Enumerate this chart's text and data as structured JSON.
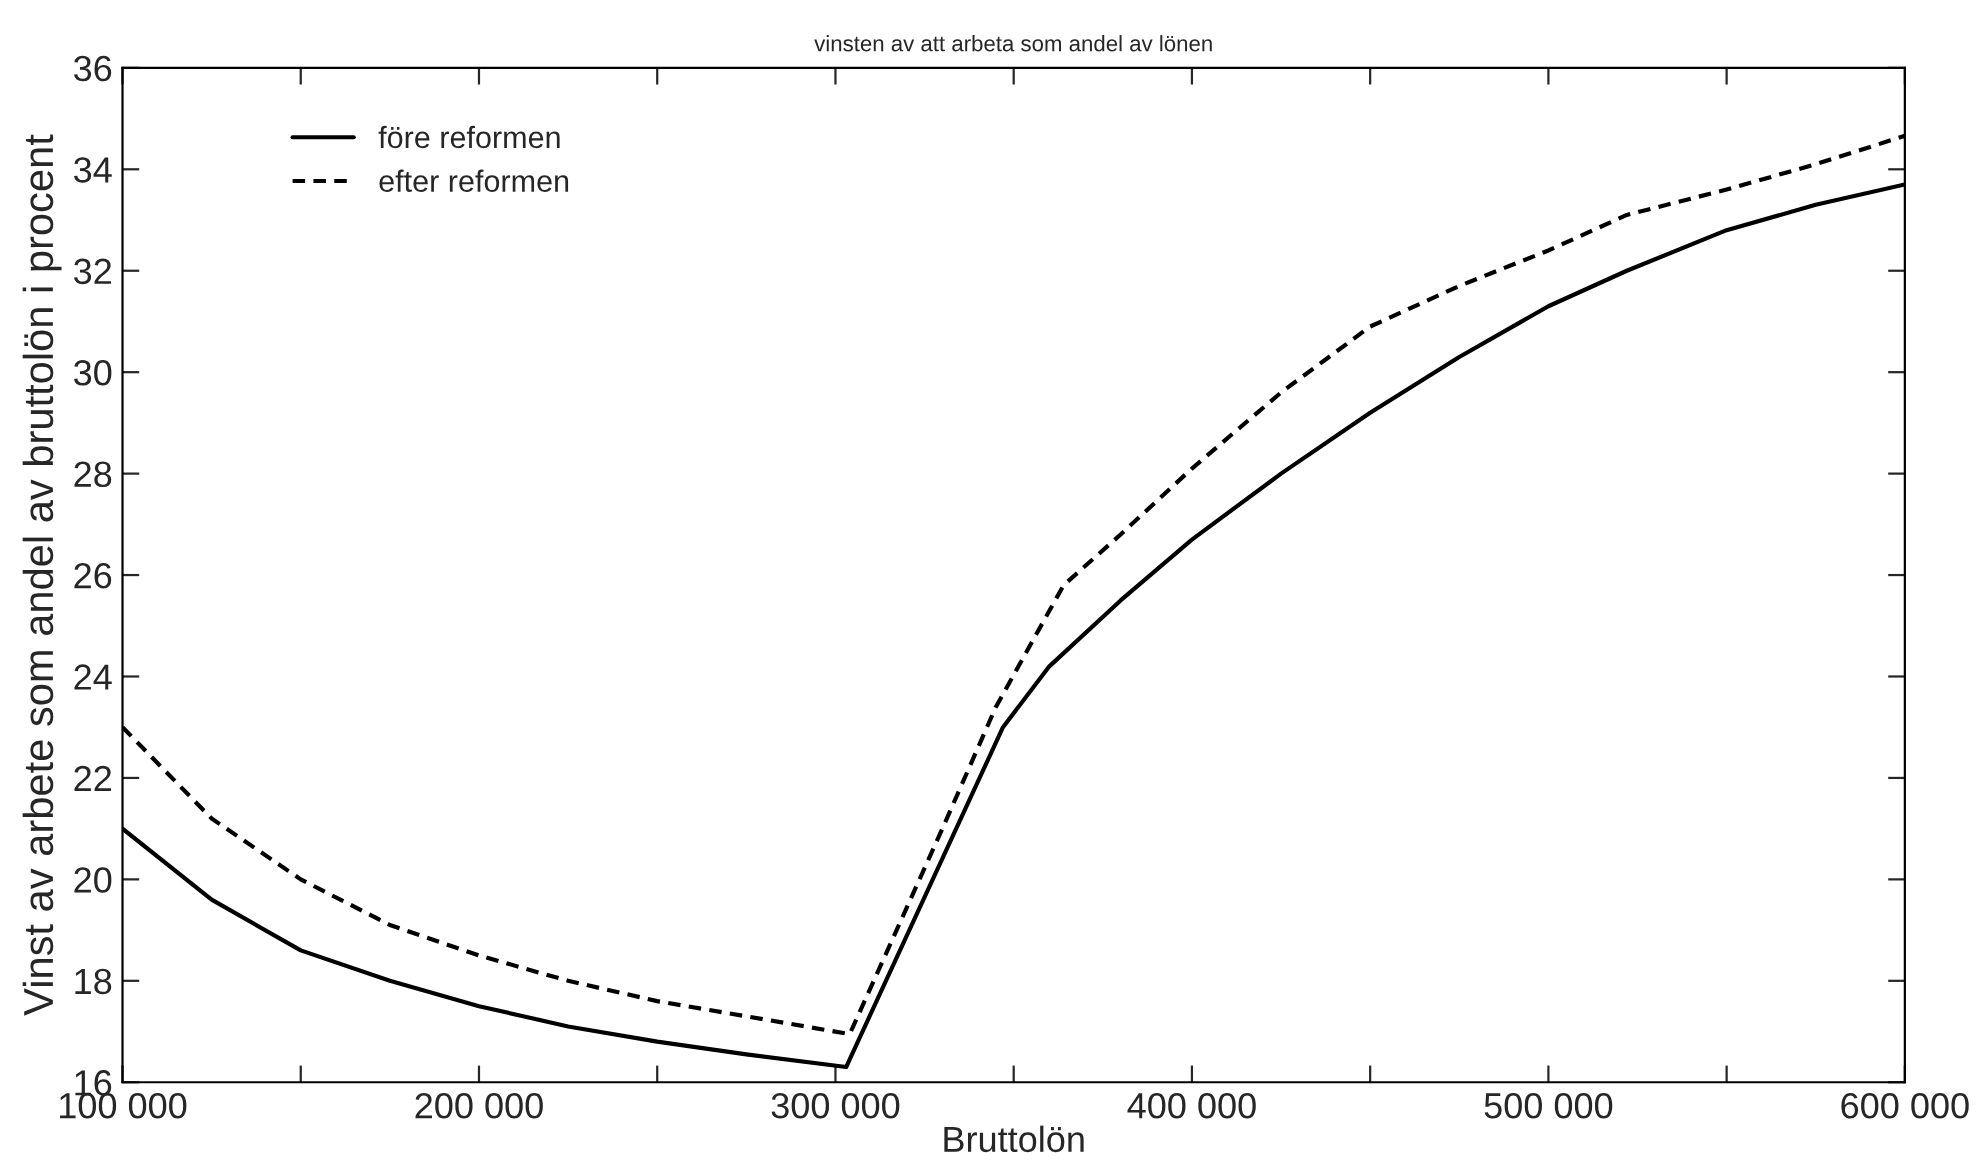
{
  "chart_data": {
    "type": "line",
    "title": "vinsten av att arbeta som andel av lönen",
    "xlabel": "Bruttolön",
    "ylabel": "Vinst av arbete som andel av bruttolön i procent",
    "series": [
      {
        "name": "före reformen",
        "color": "#000000",
        "line_style": "solid",
        "x": [
          100000,
          125000,
          150000,
          175000,
          200000,
          225000,
          250000,
          275000,
          303000,
          347000,
          360000,
          380000,
          400000,
          425000,
          450000,
          475000,
          500000,
          522000,
          550000,
          575000,
          600000
        ],
        "values": [
          21.0,
          19.6,
          18.6,
          18.0,
          17.5,
          17.1,
          16.8,
          16.55,
          16.3,
          23.0,
          24.2,
          25.5,
          26.7,
          28.0,
          29.2,
          30.3,
          31.3,
          32.0,
          32.8,
          33.3,
          33.7
        ]
      },
      {
        "name": "efter reformen",
        "color": "#000000",
        "line_style": "dashed",
        "x": [
          100000,
          125000,
          150000,
          175000,
          200000,
          225000,
          250000,
          275000,
          304000,
          330000,
          345000,
          364000,
          380000,
          400000,
          425000,
          450000,
          475000,
          500000,
          522000,
          550000,
          575000,
          600000
        ],
        "values": [
          23.0,
          21.2,
          20.0,
          19.1,
          18.5,
          18.0,
          17.6,
          17.3,
          16.95,
          21.0,
          23.4,
          25.8,
          26.8,
          28.1,
          29.6,
          30.9,
          31.7,
          32.4,
          33.1,
          33.6,
          34.1,
          34.66
        ]
      }
    ],
    "xlim": [
      100000,
      600000
    ],
    "xticks": [
      {
        "value": 100000,
        "label": "100 000"
      },
      {
        "value": 150000,
        "label": null
      },
      {
        "value": 200000,
        "label": "200 000"
      },
      {
        "value": 250000,
        "label": null
      },
      {
        "value": 300000,
        "label": "300 000"
      },
      {
        "value": 350000,
        "label": null
      },
      {
        "value": 400000,
        "label": "400 000"
      },
      {
        "value": 450000,
        "label": null
      },
      {
        "value": 500000,
        "label": "500 000"
      },
      {
        "value": 550000,
        "label": null
      },
      {
        "value": 600000,
        "label": "600 000"
      }
    ],
    "ylim": [
      16,
      36
    ],
    "yticks": [
      16,
      18,
      20,
      22,
      24,
      26,
      28,
      30,
      32,
      34,
      36
    ],
    "legend": "top left",
    "grid": false
  }
}
